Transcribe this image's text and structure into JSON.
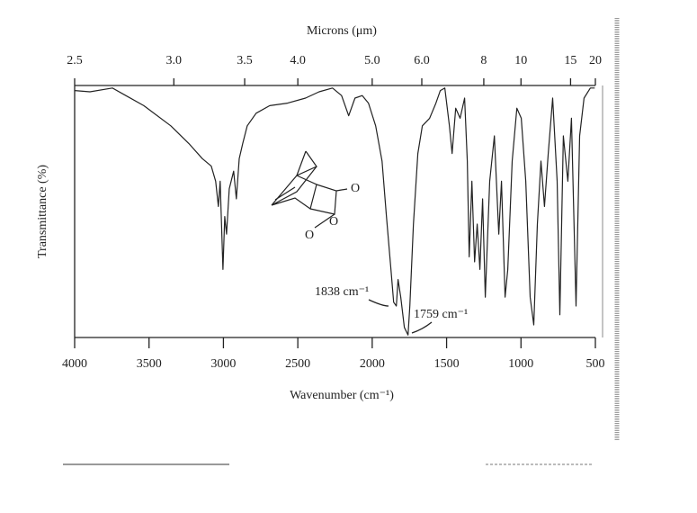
{
  "chart_data": {
    "type": "line",
    "x_label": "Wavenumber (cm⁻¹)",
    "x2_label": "Microns (μm)",
    "y_label": "Transmittance (%)",
    "annotations": [
      "1838 cm⁻¹",
      "1759 cm⁻¹"
    ],
    "molecule_atoms": [
      "O",
      "O",
      "O"
    ],
    "xlim": [
      4000,
      500
    ],
    "ylim": [
      0,
      100
    ],
    "xticks": [
      4000,
      3500,
      3000,
      2500,
      2000,
      1500,
      1000,
      500
    ],
    "x2ticks": [
      2.5,
      {
        "value": 3,
        "label": "3.0"
      },
      3.5,
      {
        "value": 4,
        "label": "4.0"
      },
      {
        "value": 5,
        "label": "5.0"
      },
      {
        "value": 6,
        "label": "6.0"
      },
      8,
      10,
      15,
      20
    ],
    "color": "#222222",
    "x": [
      4000,
      3897,
      3746,
      3656,
      3535,
      3354,
      3233,
      3142,
      3082,
      3052,
      3034,
      3022,
      3003,
      2991,
      2979,
      2961,
      2931,
      2913,
      2894,
      2870,
      2840,
      2780,
      2689,
      2569,
      2448,
      2357,
      2267,
      2206,
      2158,
      2116,
      2067,
      2025,
      1977,
      1934,
      1904,
      1874,
      1856,
      1838,
      1826,
      1808,
      1784,
      1759,
      1747,
      1723,
      1693,
      1663,
      1614,
      1572,
      1542,
      1512,
      1481,
      1463,
      1439,
      1409,
      1379,
      1361,
      1348,
      1330,
      1312,
      1294,
      1276,
      1258,
      1240,
      1210,
      1179,
      1149,
      1131,
      1107,
      1089,
      1059,
      1028,
      998,
      968,
      938,
      914,
      890,
      866,
      842,
      817,
      787,
      757,
      739,
      715,
      685,
      661,
      630,
      606,
      576,
      534,
      504
    ],
    "values": [
      98,
      97.5,
      99,
      96,
      92,
      84,
      77,
      71,
      68,
      62,
      52,
      62,
      27,
      48,
      41,
      59,
      66,
      55,
      71,
      77,
      84,
      89,
      92,
      93,
      95,
      97.5,
      99,
      96,
      88,
      95,
      96,
      93,
      84,
      70,
      48,
      27,
      14,
      12.5,
      23,
      16,
      4,
      1,
      12.5,
      45,
      73,
      84,
      87,
      93,
      98,
      99,
      84,
      73,
      91,
      87,
      95,
      70,
      32,
      62,
      30,
      45,
      27,
      55,
      16,
      62,
      80,
      41,
      62,
      16,
      27,
      70,
      91,
      87,
      62,
      16,
      5,
      45,
      70,
      52,
      73,
      95,
      62,
      9,
      80,
      62,
      87,
      12.5,
      80,
      95,
      99,
      99
    ]
  }
}
